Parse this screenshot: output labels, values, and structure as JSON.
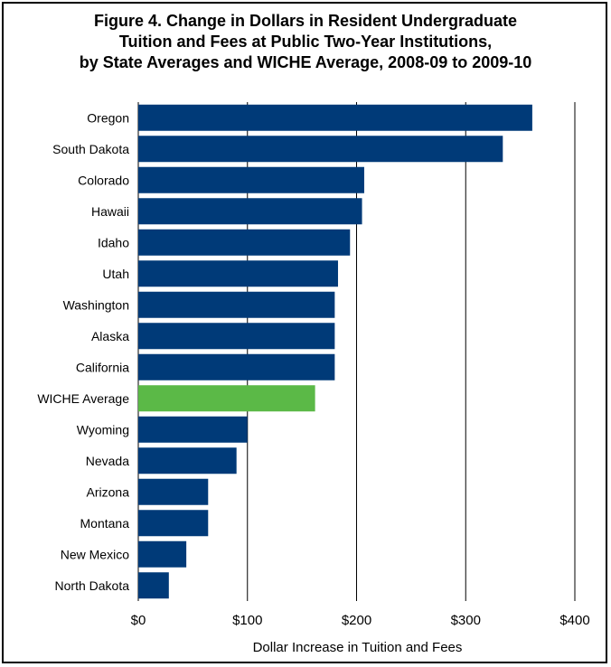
{
  "chart_data": {
    "type": "bar",
    "orientation": "horizontal",
    "title_lines": [
      "Figure 4. Change in Dollars in Resident Undergraduate",
      "Tuition and Fees at Public Two-Year Institutions,",
      "by State Averages and WICHE Average, 2008-09 to 2009-10"
    ],
    "categories": [
      "Oregon",
      "South Dakota",
      "Colorado",
      "Hawaii",
      "Idaho",
      "Utah",
      "Washington",
      "Alaska",
      "California",
      "WICHE Average",
      "Wyoming",
      "Nevada",
      "Arizona",
      "Montana",
      "New Mexico",
      "North Dakota"
    ],
    "values": [
      361,
      334,
      207,
      205,
      194,
      183,
      180,
      180,
      180,
      162,
      100,
      90,
      64,
      64,
      44,
      28
    ],
    "highlight_category": "WICHE Average",
    "xlabel": "Dollar Increase in Tuition and Fees",
    "ylabel": "",
    "xlim": [
      0,
      400
    ],
    "x_ticks": [
      0,
      100,
      200,
      300,
      400
    ],
    "x_tick_labels": [
      "$0",
      "$100",
      "$200",
      "$300",
      "$400"
    ],
    "grid": "vertical",
    "colors": {
      "bar": "#003a78",
      "highlight": "#5bb947",
      "grid": "#000000"
    }
  }
}
